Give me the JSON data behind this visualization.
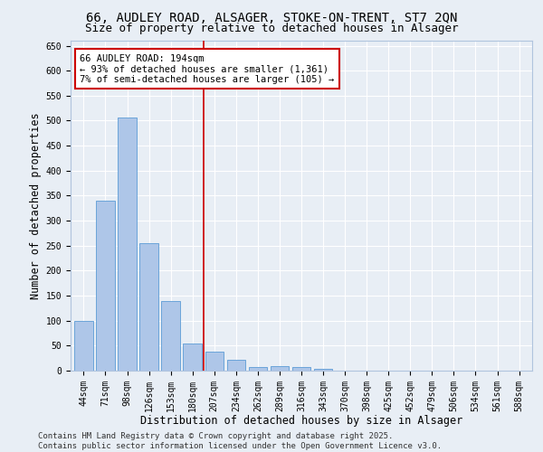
{
  "title_line1": "66, AUDLEY ROAD, ALSAGER, STOKE-ON-TRENT, ST7 2QN",
  "title_line2": "Size of property relative to detached houses in Alsager",
  "xlabel": "Distribution of detached houses by size in Alsager",
  "ylabel": "Number of detached properties",
  "categories": [
    "44sqm",
    "71sqm",
    "98sqm",
    "126sqm",
    "153sqm",
    "180sqm",
    "207sqm",
    "234sqm",
    "262sqm",
    "289sqm",
    "316sqm",
    "343sqm",
    "370sqm",
    "398sqm",
    "425sqm",
    "452sqm",
    "479sqm",
    "506sqm",
    "534sqm",
    "561sqm",
    "588sqm"
  ],
  "values": [
    100,
    340,
    506,
    255,
    140,
    55,
    38,
    22,
    7,
    9,
    7,
    4,
    0,
    0,
    0,
    0,
    0,
    0,
    0,
    0,
    0
  ],
  "bar_color": "#aec6e8",
  "bar_edge_color": "#5b9bd5",
  "vline_x_index": 5.5,
  "vline_color": "#cc0000",
  "annotation_line1": "66 AUDLEY ROAD: 194sqm",
  "annotation_line2": "← 93% of detached houses are smaller (1,361)",
  "annotation_line3": "7% of semi-detached houses are larger (105) →",
  "annotation_box_color": "#ffffff",
  "annotation_box_edge_color": "#cc0000",
  "ylim": [
    0,
    660
  ],
  "yticks": [
    0,
    50,
    100,
    150,
    200,
    250,
    300,
    350,
    400,
    450,
    500,
    550,
    600,
    650
  ],
  "footer_line1": "Contains HM Land Registry data © Crown copyright and database right 2025.",
  "footer_line2": "Contains public sector information licensed under the Open Government Licence v3.0.",
  "background_color": "#e8eef5",
  "grid_color": "#ffffff",
  "title_fontsize": 10,
  "subtitle_fontsize": 9,
  "axis_label_fontsize": 8.5,
  "tick_fontsize": 7,
  "annotation_fontsize": 7.5,
  "footer_fontsize": 6.5
}
